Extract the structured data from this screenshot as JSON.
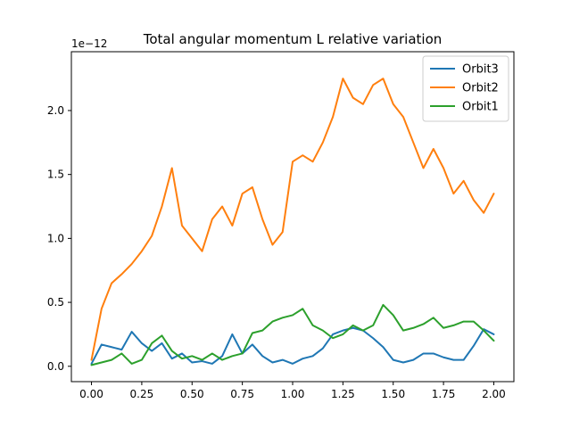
{
  "chart_data": {
    "type": "line",
    "title": "Total angular momentum L relative variation",
    "xlabel": "",
    "ylabel": "",
    "y_offset_text": "1e−12",
    "xlim": [
      -0.1,
      2.1
    ],
    "ylim": [
      -0.12,
      2.46
    ],
    "x_ticks": [
      0.0,
      0.25,
      0.5,
      0.75,
      1.0,
      1.25,
      1.5,
      1.75,
      2.0
    ],
    "x_tick_labels": [
      "0.00",
      "0.25",
      "0.50",
      "0.75",
      "1.00",
      "1.25",
      "1.50",
      "1.75",
      "2.00"
    ],
    "y_ticks": [
      0.0,
      0.5,
      1.0,
      1.5,
      2.0
    ],
    "y_tick_labels": [
      "0.0",
      "0.5",
      "1.0",
      "1.5",
      "2.0"
    ],
    "grid": false,
    "legend_position": "top-right",
    "x": [
      0.0,
      0.05,
      0.1,
      0.15,
      0.2,
      0.25,
      0.3,
      0.35,
      0.4,
      0.45,
      0.5,
      0.55,
      0.6,
      0.65,
      0.7,
      0.75,
      0.8,
      0.85,
      0.9,
      0.95,
      1.0,
      1.05,
      1.1,
      1.15,
      1.2,
      1.25,
      1.3,
      1.35,
      1.4,
      1.45,
      1.5,
      1.55,
      1.6,
      1.65,
      1.7,
      1.75,
      1.8,
      1.85,
      1.9,
      1.95,
      2.0
    ],
    "series": [
      {
        "name": "Orbit3",
        "color": "#1f77b4",
        "values": [
          0.02,
          0.17,
          0.15,
          0.13,
          0.27,
          0.18,
          0.12,
          0.18,
          0.06,
          0.1,
          0.03,
          0.04,
          0.02,
          0.08,
          0.25,
          0.1,
          0.17,
          0.08,
          0.03,
          0.05,
          0.02,
          0.06,
          0.08,
          0.14,
          0.25,
          0.28,
          0.3,
          0.28,
          0.22,
          0.15,
          0.05,
          0.03,
          0.05,
          0.1,
          0.1,
          0.07,
          0.05,
          0.05,
          0.16,
          0.29,
          0.25
        ]
      },
      {
        "name": "Orbit2",
        "color": "#ff7f0e",
        "values": [
          0.05,
          0.45,
          0.65,
          0.72,
          0.8,
          0.9,
          1.02,
          1.25,
          1.55,
          1.1,
          1.0,
          0.9,
          1.15,
          1.25,
          1.1,
          1.35,
          1.4,
          1.15,
          0.95,
          1.05,
          1.6,
          1.65,
          1.6,
          1.75,
          1.95,
          2.25,
          2.1,
          2.05,
          2.2,
          2.25,
          2.05,
          1.95,
          1.75,
          1.55,
          1.7,
          1.55,
          1.35,
          1.45,
          1.3,
          1.2,
          1.35
        ]
      },
      {
        "name": "Orbit1",
        "color": "#2ca02c",
        "values": [
          0.01,
          0.03,
          0.05,
          0.1,
          0.02,
          0.05,
          0.18,
          0.24,
          0.12,
          0.06,
          0.08,
          0.05,
          0.1,
          0.05,
          0.08,
          0.1,
          0.26,
          0.28,
          0.35,
          0.38,
          0.4,
          0.45,
          0.32,
          0.28,
          0.22,
          0.25,
          0.32,
          0.28,
          0.32,
          0.48,
          0.4,
          0.28,
          0.3,
          0.33,
          0.38,
          0.3,
          0.32,
          0.35,
          0.35,
          0.28,
          0.2
        ]
      }
    ]
  }
}
